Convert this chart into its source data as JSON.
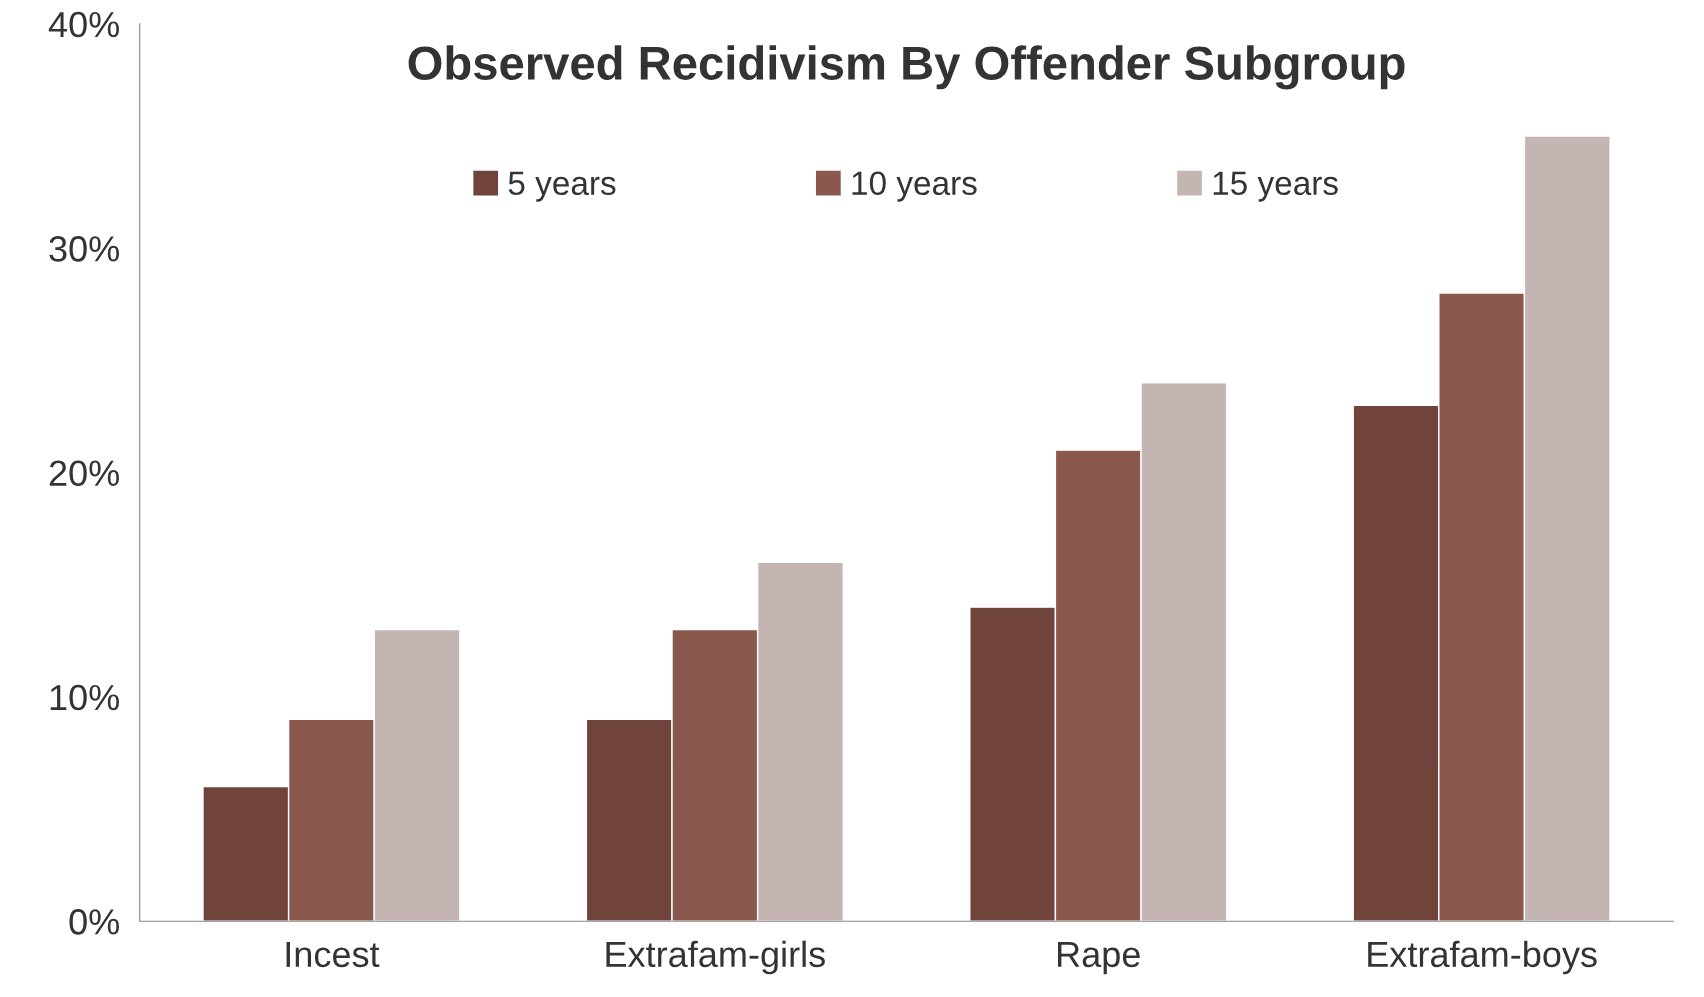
{
  "chart_data": {
    "type": "bar",
    "title": "Observed Recidivism By Offender Subgroup",
    "categories": [
      "Incest",
      "Extrafam-girls",
      "Rape",
      "Extrafam-boys"
    ],
    "series": [
      {
        "name": "5 years",
        "color": "#71443b",
        "values": [
          6,
          9,
          14,
          23
        ]
      },
      {
        "name": "10 years",
        "color": "#8b584d",
        "values": [
          9,
          13,
          21,
          28
        ]
      },
      {
        "name": "15 years",
        "color": "#c4b5b2",
        "values": [
          13,
          16,
          24,
          35
        ]
      }
    ],
    "ylim": [
      0,
      40
    ],
    "yticks": [
      {
        "value": 0,
        "label": "0%"
      },
      {
        "value": 10,
        "label": "10%"
      },
      {
        "value": 20,
        "label": "20%"
      },
      {
        "value": 30,
        "label": "30%"
      },
      {
        "value": 40,
        "label": "40%"
      }
    ],
    "grid": false,
    "legend": "top"
  }
}
